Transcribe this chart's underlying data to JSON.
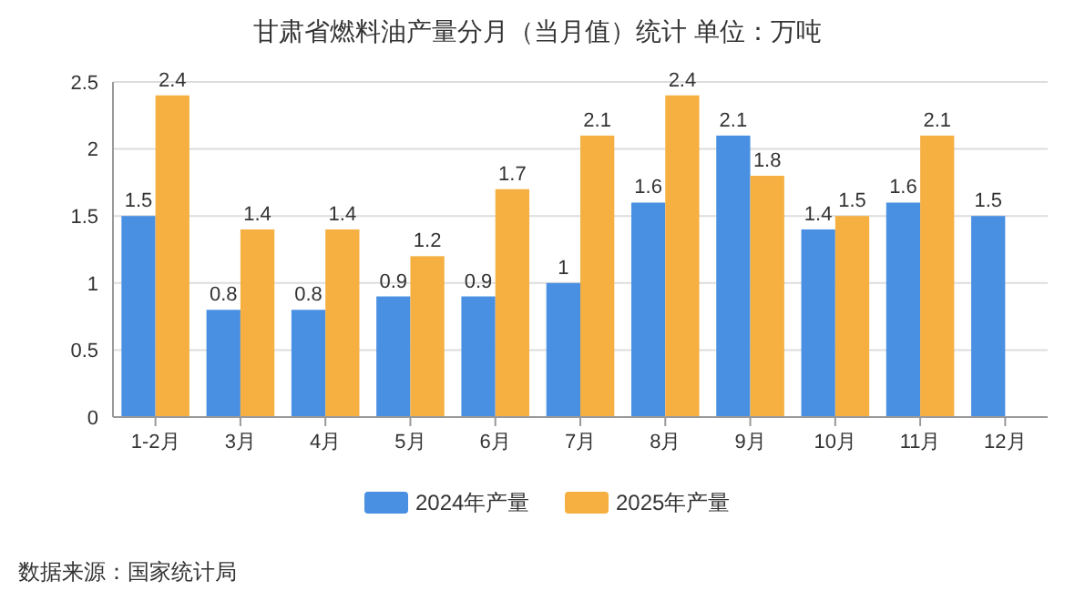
{
  "chart_data": {
    "type": "bar",
    "title": "甘肃省燃料油产量分月（当月值）统计  单位：万吨",
    "categories": [
      "1-2月",
      "3月",
      "4月",
      "5月",
      "6月",
      "7月",
      "8月",
      "9月",
      "10月",
      "11月",
      "12月"
    ],
    "series": [
      {
        "name": "2024年产量",
        "color": "#4a90e2",
        "values": [
          1.5,
          0.8,
          0.8,
          0.9,
          0.9,
          1,
          1.6,
          2.1,
          1.4,
          1.6,
          1.5
        ]
      },
      {
        "name": "2025年产量",
        "color": "#f5b041",
        "values": [
          2.4,
          1.4,
          1.4,
          1.2,
          1.7,
          2.1,
          2.4,
          1.8,
          1.5,
          2.1,
          null
        ]
      }
    ],
    "ylim": [
      0,
      2.5
    ],
    "yticks": [
      0,
      0.5,
      1,
      1.5,
      2,
      2.5
    ],
    "grid": "y",
    "legend": "bottom",
    "data_labels": true,
    "annotations": [
      "数据来源：国家统计局"
    ]
  }
}
